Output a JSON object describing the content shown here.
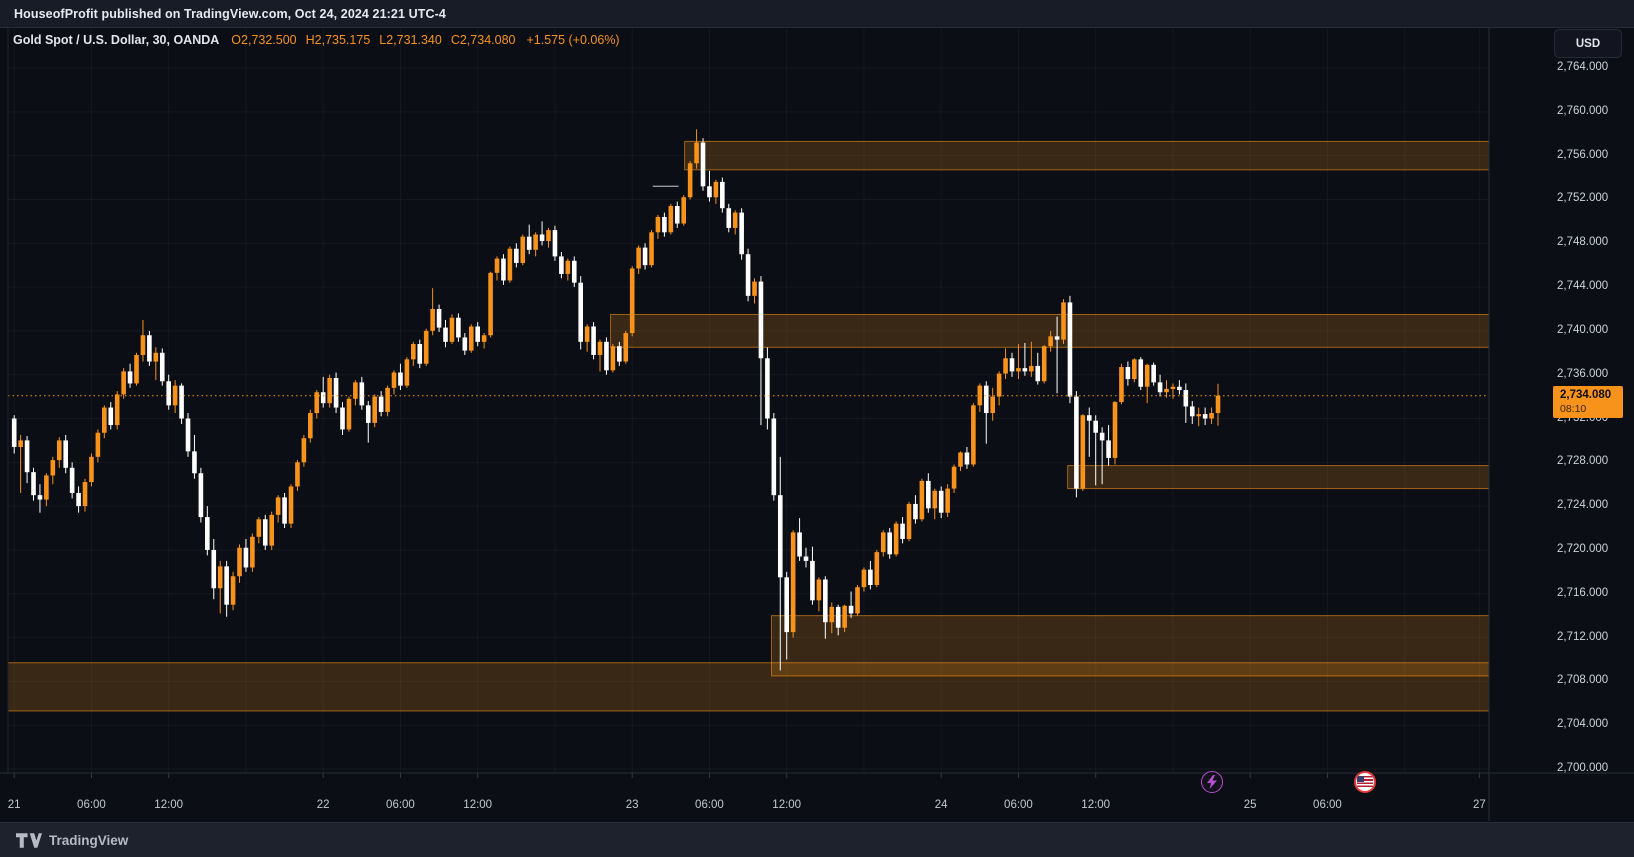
{
  "header": {
    "text": "HouseofProfit published on TradingView.com, Oct 24, 2024 21:21 UTC-4"
  },
  "legend": {
    "title": "Gold Spot / U.S. Dollar, 30, OANDA",
    "ohlc": [
      {
        "label": "O",
        "value": "2,732.500"
      },
      {
        "label": "H",
        "value": "2,735.175"
      },
      {
        "label": "L",
        "value": "2,731.340"
      },
      {
        "label": "C",
        "value": "2,734.080"
      }
    ],
    "change": "+1.575 (+0.06%)"
  },
  "price_axis": {
    "currency_label": "USD",
    "last_price": "2,734.080",
    "countdown": "08:10",
    "labels": [
      "2,700.000",
      "2,704.000",
      "2,708.000",
      "2,712.000",
      "2,716.000",
      "2,720.000",
      "2,724.000",
      "2,728.000",
      "2,732.000",
      "2,736.000",
      "2,740.000",
      "2,744.000",
      "2,748.000",
      "2,752.000",
      "2,756.000",
      "2,760.000",
      "2,764.000"
    ]
  },
  "time_axis": {
    "ticks": [
      {
        "hour": 0,
        "label": "21"
      },
      {
        "hour": 6,
        "label": "06:00"
      },
      {
        "hour": 12,
        "label": "12:00"
      },
      {
        "hour": 24,
        "label": "22"
      },
      {
        "hour": 30,
        "label": "06:00"
      },
      {
        "hour": 36,
        "label": "12:00"
      },
      {
        "hour": 48,
        "label": "23"
      },
      {
        "hour": 54,
        "label": "06:00"
      },
      {
        "hour": 60,
        "label": "12:00"
      },
      {
        "hour": 72,
        "label": "24"
      },
      {
        "hour": 78,
        "label": "06:00"
      },
      {
        "hour": 84,
        "label": "12:00"
      },
      {
        "hour": 96,
        "label": "25"
      },
      {
        "hour": 102,
        "label": "06:00"
      },
      {
        "hour": 113.8,
        "label": "27"
      }
    ],
    "gridline_hours": [
      0,
      6,
      12,
      18,
      24,
      30,
      36,
      42,
      48,
      54,
      60,
      66,
      72,
      78,
      84,
      90,
      96,
      102,
      108,
      113.8
    ],
    "event_markers": [
      {
        "icon": "lightning-icon",
        "hour": 93.0,
        "color": "#b44fd0"
      },
      {
        "icon": "us-flag-icon",
        "hour": 104.9,
        "color": "#e23b3b"
      }
    ]
  },
  "footer": {
    "brand": "TradingView"
  },
  "chart_data": {
    "type": "candlestick",
    "symbol": "Gold Spot / U.S. Dollar (XAUUSD)",
    "exchange": "OANDA",
    "interval_minutes": 30,
    "start_time": "2024-10-21 00:00",
    "title": "Gold Spot / U.S. Dollar, 30, OANDA",
    "current_price": 2734.08,
    "y_axis": {
      "min": 2700,
      "max": 2764,
      "step": 4,
      "unit": "USD"
    },
    "colors": {
      "up": "#f7931a",
      "down": "#ffffff",
      "zone_fill": "rgba(247,147,26,0.20)",
      "zone_border": "rgba(247,147,26,0.60)",
      "grid": "rgba(255,255,255,0.045)",
      "current_line": "#ff9800",
      "level_line": "#9598a1"
    },
    "zones": [
      {
        "name": "supply-zone-top",
        "top": 2757.3,
        "bottom": 2754.7,
        "start_index": 104.5
      },
      {
        "name": "supply-zone-mid",
        "top": 2741.5,
        "bottom": 2738.5,
        "start_index": 93
      },
      {
        "name": "demand-zone-upper",
        "top": 2727.7,
        "bottom": 2725.6,
        "start_index": 164
      },
      {
        "name": "demand-zone-lower",
        "top": 2714.0,
        "bottom": 2708.5,
        "start_index": 118
      },
      {
        "name": "demand-zone-base",
        "top": 2709.7,
        "bottom": 2705.3,
        "start_index": -1
      }
    ],
    "level_line": {
      "price": 2753.2,
      "from_hour": 49.6,
      "to_hour": 51.6
    },
    "candles": [
      [
        2732.0,
        2732.3,
        2728.8,
        2729.4
      ],
      [
        2729.4,
        2730.5,
        2725.2,
        2730.0
      ],
      [
        2730.0,
        2730.4,
        2726.1,
        2727.1
      ],
      [
        2727.1,
        2727.5,
        2724.5,
        2725.0
      ],
      [
        2725.0,
        2726.0,
        2723.4,
        2724.6
      ],
      [
        2724.6,
        2727.0,
        2724.0,
        2726.8
      ],
      [
        2726.8,
        2728.5,
        2726.0,
        2728.2
      ],
      [
        2728.2,
        2730.3,
        2727.5,
        2730.0
      ],
      [
        2730.0,
        2730.5,
        2727.0,
        2727.5
      ],
      [
        2727.5,
        2728.0,
        2724.7,
        2725.2
      ],
      [
        2725.2,
        2725.8,
        2723.4,
        2724.0
      ],
      [
        2724.0,
        2726.5,
        2723.5,
        2726.2
      ],
      [
        2726.2,
        2728.8,
        2725.8,
        2728.5
      ],
      [
        2728.5,
        2731.0,
        2728.0,
        2730.7
      ],
      [
        2730.7,
        2733.2,
        2730.2,
        2733.0
      ],
      [
        2733.0,
        2733.5,
        2731.0,
        2731.4
      ],
      [
        2731.4,
        2734.5,
        2731.0,
        2734.2
      ],
      [
        2734.2,
        2736.6,
        2733.8,
        2736.3
      ],
      [
        2736.3,
        2737.0,
        2734.8,
        2735.2
      ],
      [
        2735.2,
        2738.0,
        2735.0,
        2737.8
      ],
      [
        2737.8,
        2741.0,
        2737.2,
        2739.6
      ],
      [
        2739.6,
        2740.0,
        2736.8,
        2737.2
      ],
      [
        2737.2,
        2738.5,
        2735.5,
        2738.0
      ],
      [
        2738.0,
        2738.4,
        2735.0,
        2735.4
      ],
      [
        2735.4,
        2736.0,
        2732.8,
        2733.2
      ],
      [
        2733.2,
        2735.5,
        2732.5,
        2735.0
      ],
      [
        2735.0,
        2735.2,
        2731.5,
        2732.0
      ],
      [
        2732.0,
        2732.5,
        2728.5,
        2729.0
      ],
      [
        2729.0,
        2730.5,
        2726.5,
        2727.0
      ],
      [
        2727.0,
        2727.5,
        2722.5,
        2723.0
      ],
      [
        2723.0,
        2724.0,
        2719.5,
        2720.0
      ],
      [
        2720.0,
        2721.0,
        2715.5,
        2716.5
      ],
      [
        2716.5,
        2719.0,
        2714.2,
        2718.5
      ],
      [
        2718.5,
        2719.0,
        2713.9,
        2715.0
      ],
      [
        2715.0,
        2718.0,
        2714.5,
        2717.6
      ],
      [
        2717.6,
        2720.5,
        2717.0,
        2720.2
      ],
      [
        2720.2,
        2721.0,
        2718.0,
        2718.4
      ],
      [
        2718.4,
        2721.5,
        2718.0,
        2721.2
      ],
      [
        2721.2,
        2723.0,
        2720.6,
        2722.8
      ],
      [
        2722.8,
        2723.2,
        2720.0,
        2720.4
      ],
      [
        2720.4,
        2723.5,
        2720.0,
        2723.2
      ],
      [
        2723.2,
        2725.0,
        2722.5,
        2724.8
      ],
      [
        2724.8,
        2725.2,
        2722.0,
        2722.4
      ],
      [
        2722.4,
        2726.0,
        2722.0,
        2725.8
      ],
      [
        2725.8,
        2728.2,
        2725.4,
        2728.0
      ],
      [
        2728.0,
        2730.5,
        2727.6,
        2730.2
      ],
      [
        2730.2,
        2732.8,
        2729.8,
        2732.5
      ],
      [
        2732.5,
        2734.6,
        2732.0,
        2734.4
      ],
      [
        2734.4,
        2735.8,
        2733.0,
        2733.4
      ],
      [
        2733.4,
        2736.0,
        2733.0,
        2735.7
      ],
      [
        2735.7,
        2736.2,
        2732.5,
        2733.0
      ],
      [
        2733.0,
        2733.5,
        2730.5,
        2731.0
      ],
      [
        2731.0,
        2734.0,
        2730.8,
        2733.8
      ],
      [
        2733.8,
        2735.5,
        2733.2,
        2735.3
      ],
      [
        2735.3,
        2735.8,
        2732.8,
        2733.2
      ],
      [
        2733.2,
        2733.6,
        2729.8,
        2731.6
      ],
      [
        2731.6,
        2734.2,
        2731.2,
        2734.0
      ],
      [
        2734.0,
        2734.5,
        2732.2,
        2732.6
      ],
      [
        2732.6,
        2735.0,
        2732.2,
        2734.8
      ],
      [
        2734.8,
        2736.4,
        2734.2,
        2736.2
      ],
      [
        2736.2,
        2737.0,
        2734.6,
        2735.0
      ],
      [
        2735.0,
        2737.6,
        2734.8,
        2737.4
      ],
      [
        2737.4,
        2739.0,
        2736.8,
        2738.8
      ],
      [
        2738.8,
        2739.2,
        2736.6,
        2737.0
      ],
      [
        2737.0,
        2740.2,
        2736.8,
        2740.0
      ],
      [
        2740.0,
        2743.9,
        2739.6,
        2742.0
      ],
      [
        2742.0,
        2742.4,
        2739.9,
        2740.3
      ],
      [
        2740.3,
        2741.0,
        2738.5,
        2739.0
      ],
      [
        2739.0,
        2741.5,
        2738.8,
        2741.2
      ],
      [
        2741.2,
        2741.6,
        2739.0,
        2739.4
      ],
      [
        2739.4,
        2739.8,
        2737.8,
        2738.2
      ],
      [
        2738.2,
        2740.6,
        2738.0,
        2740.4
      ],
      [
        2740.4,
        2740.8,
        2738.6,
        2739.0
      ],
      [
        2739.0,
        2739.8,
        2738.4,
        2739.6
      ],
      [
        2739.6,
        2745.4,
        2739.4,
        2745.3
      ],
      [
        2745.3,
        2746.8,
        2744.6,
        2746.6
      ],
      [
        2746.6,
        2747.0,
        2744.2,
        2744.6
      ],
      [
        2744.6,
        2747.7,
        2744.4,
        2747.5
      ],
      [
        2747.5,
        2748.0,
        2745.8,
        2746.2
      ],
      [
        2746.2,
        2748.8,
        2746.0,
        2748.6
      ],
      [
        2748.6,
        2749.7,
        2747.0,
        2747.4
      ],
      [
        2747.4,
        2749.0,
        2746.8,
        2748.8
      ],
      [
        2748.8,
        2750.0,
        2747.8,
        2748.2
      ],
      [
        2748.2,
        2749.4,
        2747.6,
        2749.2
      ],
      [
        2749.2,
        2749.6,
        2746.4,
        2746.8
      ],
      [
        2746.8,
        2747.2,
        2744.8,
        2745.2
      ],
      [
        2745.2,
        2746.6,
        2744.6,
        2746.4
      ],
      [
        2746.4,
        2746.8,
        2744.0,
        2744.4
      ],
      [
        2744.4,
        2745.0,
        2738.3,
        2739.0
      ],
      [
        2739.0,
        2740.6,
        2738.1,
        2740.4
      ],
      [
        2740.4,
        2740.8,
        2737.4,
        2737.8
      ],
      [
        2737.8,
        2739.2,
        2736.3,
        2739.0
      ],
      [
        2739.0,
        2739.4,
        2736.0,
        2736.4
      ],
      [
        2736.4,
        2738.8,
        2736.2,
        2738.6
      ],
      [
        2738.6,
        2739.0,
        2736.8,
        2737.2
      ],
      [
        2737.2,
        2740.0,
        2737.0,
        2739.8
      ],
      [
        2739.8,
        2745.9,
        2739.5,
        2745.7
      ],
      [
        2745.7,
        2747.8,
        2745.2,
        2747.6
      ],
      [
        2747.6,
        2748.0,
        2745.6,
        2746.0
      ],
      [
        2746.0,
        2749.2,
        2745.8,
        2749.0
      ],
      [
        2749.0,
        2750.6,
        2748.4,
        2750.4
      ],
      [
        2750.4,
        2750.8,
        2748.6,
        2749.0
      ],
      [
        2749.0,
        2751.6,
        2748.8,
        2751.4
      ],
      [
        2751.4,
        2751.8,
        2749.4,
        2749.8
      ],
      [
        2749.8,
        2752.4,
        2749.6,
        2752.2
      ],
      [
        2752.2,
        2755.5,
        2752.0,
        2755.3
      ],
      [
        2755.3,
        2758.4,
        2754.8,
        2757.2
      ],
      [
        2757.2,
        2757.6,
        2752.8,
        2753.2
      ],
      [
        2753.2,
        2754.6,
        2751.8,
        2752.2
      ],
      [
        2752.2,
        2753.8,
        2751.6,
        2753.6
      ],
      [
        2753.6,
        2754.0,
        2750.8,
        2751.2
      ],
      [
        2751.2,
        2751.6,
        2749.0,
        2749.4
      ],
      [
        2749.4,
        2751.0,
        2748.8,
        2750.8
      ],
      [
        2750.8,
        2751.2,
        2746.5,
        2747.0
      ],
      [
        2747.0,
        2747.5,
        2742.7,
        2743.2
      ],
      [
        2743.2,
        2744.8,
        2742.5,
        2744.5
      ],
      [
        2744.5,
        2745.0,
        2731.4,
        2737.5
      ],
      [
        2737.5,
        2738.5,
        2731.0,
        2732.0
      ],
      [
        2732.0,
        2732.5,
        2724.5,
        2725.0
      ],
      [
        2725.0,
        2728.5,
        2709.0,
        2717.5
      ],
      [
        2717.5,
        2718.0,
        2710.0,
        2712.5
      ],
      [
        2712.5,
        2721.8,
        2712.0,
        2721.6
      ],
      [
        2721.6,
        2722.9,
        2719.0,
        2719.4
      ],
      [
        2719.4,
        2720.2,
        2718.4,
        2719.0
      ],
      [
        2719.0,
        2720.3,
        2715.0,
        2715.4
      ],
      [
        2715.4,
        2717.5,
        2714.4,
        2717.3
      ],
      [
        2717.3,
        2717.6,
        2711.9,
        2713.4
      ],
      [
        2713.4,
        2715.2,
        2712.4,
        2714.8
      ],
      [
        2714.8,
        2715.0,
        2712.2,
        2712.9
      ],
      [
        2712.9,
        2715.0,
        2712.5,
        2714.9
      ],
      [
        2714.9,
        2716.2,
        2713.8,
        2714.2
      ],
      [
        2714.2,
        2716.8,
        2714.0,
        2716.6
      ],
      [
        2716.6,
        2718.4,
        2716.2,
        2718.2
      ],
      [
        2718.2,
        2719.0,
        2716.4,
        2716.8
      ],
      [
        2716.8,
        2720.0,
        2716.6,
        2719.8
      ],
      [
        2719.8,
        2721.8,
        2719.4,
        2721.6
      ],
      [
        2721.6,
        2722.0,
        2719.2,
        2719.6
      ],
      [
        2719.6,
        2722.6,
        2719.4,
        2722.4
      ],
      [
        2722.4,
        2723.0,
        2720.6,
        2721.0
      ],
      [
        2721.0,
        2724.4,
        2720.8,
        2724.2
      ],
      [
        2724.2,
        2725.0,
        2722.4,
        2722.8
      ],
      [
        2722.8,
        2726.5,
        2722.6,
        2726.3
      ],
      [
        2726.3,
        2727.0,
        2723.4,
        2723.8
      ],
      [
        2723.8,
        2725.6,
        2722.8,
        2725.4
      ],
      [
        2725.4,
        2725.8,
        2722.9,
        2723.4
      ],
      [
        2723.4,
        2726.0,
        2723.0,
        2725.6
      ],
      [
        2725.6,
        2727.8,
        2725.2,
        2727.6
      ],
      [
        2727.6,
        2729.0,
        2727.2,
        2728.9
      ],
      [
        2728.9,
        2729.4,
        2727.4,
        2727.8
      ],
      [
        2727.8,
        2733.4,
        2727.6,
        2733.2
      ],
      [
        2733.2,
        2735.2,
        2732.6,
        2735.0
      ],
      [
        2735.0,
        2735.4,
        2729.7,
        2732.5
      ],
      [
        2732.5,
        2734.8,
        2731.8,
        2734.0
      ],
      [
        2734.0,
        2736.3,
        2733.2,
        2736.1
      ],
      [
        2736.1,
        2738.4,
        2735.6,
        2737.5
      ],
      [
        2737.5,
        2738.0,
        2735.8,
        2736.3
      ],
      [
        2736.3,
        2738.8,
        2735.6,
        2736.6
      ],
      [
        2736.6,
        2738.9,
        2735.9,
        2736.3
      ],
      [
        2736.3,
        2739.0,
        2735.8,
        2736.8
      ],
      [
        2736.8,
        2738.0,
        2735.1,
        2735.4
      ],
      [
        2735.4,
        2738.7,
        2735.2,
        2738.6
      ],
      [
        2738.6,
        2740.0,
        2738.1,
        2739.5
      ],
      [
        2739.5,
        2741.3,
        2734.3,
        2739.2
      ],
      [
        2739.2,
        2742.9,
        2738.8,
        2742.6
      ],
      [
        2742.6,
        2743.2,
        2733.4,
        2734.0
      ],
      [
        2734.0,
        2734.5,
        2724.8,
        2725.6
      ],
      [
        2725.6,
        2732.4,
        2725.4,
        2732.3
      ],
      [
        2732.3,
        2733.0,
        2728.5,
        2731.8
      ],
      [
        2731.8,
        2732.3,
        2725.9,
        2730.7
      ],
      [
        2730.7,
        2731.2,
        2726.0,
        2730.0
      ],
      [
        2730.0,
        2731.4,
        2727.7,
        2728.4
      ],
      [
        2728.4,
        2733.6,
        2727.8,
        2733.5
      ],
      [
        2733.5,
        2737.0,
        2733.3,
        2736.7
      ],
      [
        2736.7,
        2737.2,
        2735.0,
        2735.6
      ],
      [
        2735.6,
        2737.5,
        2735.3,
        2737.4
      ],
      [
        2737.4,
        2737.6,
        2734.6,
        2734.9
      ],
      [
        2734.9,
        2737.0,
        2733.4,
        2736.9
      ],
      [
        2736.9,
        2737.1,
        2735.0,
        2735.3
      ],
      [
        2735.3,
        2736.0,
        2734.0,
        2734.4
      ],
      [
        2734.4,
        2735.5,
        2733.9,
        2734.7
      ],
      [
        2734.7,
        2735.2,
        2733.8,
        2734.9
      ],
      [
        2734.9,
        2735.5,
        2734.2,
        2734.6
      ],
      [
        2734.6,
        2735.2,
        2731.6,
        2733.1
      ],
      [
        2733.1,
        2733.6,
        2731.5,
        2732.2
      ],
      [
        2732.2,
        2733.0,
        2731.3,
        2732.4
      ],
      [
        2732.4,
        2733.0,
        2731.4,
        2732.0
      ],
      [
        2732.0,
        2733.0,
        2731.5,
        2732.5
      ],
      [
        2732.5,
        2735.175,
        2731.34,
        2734.08
      ]
    ]
  }
}
